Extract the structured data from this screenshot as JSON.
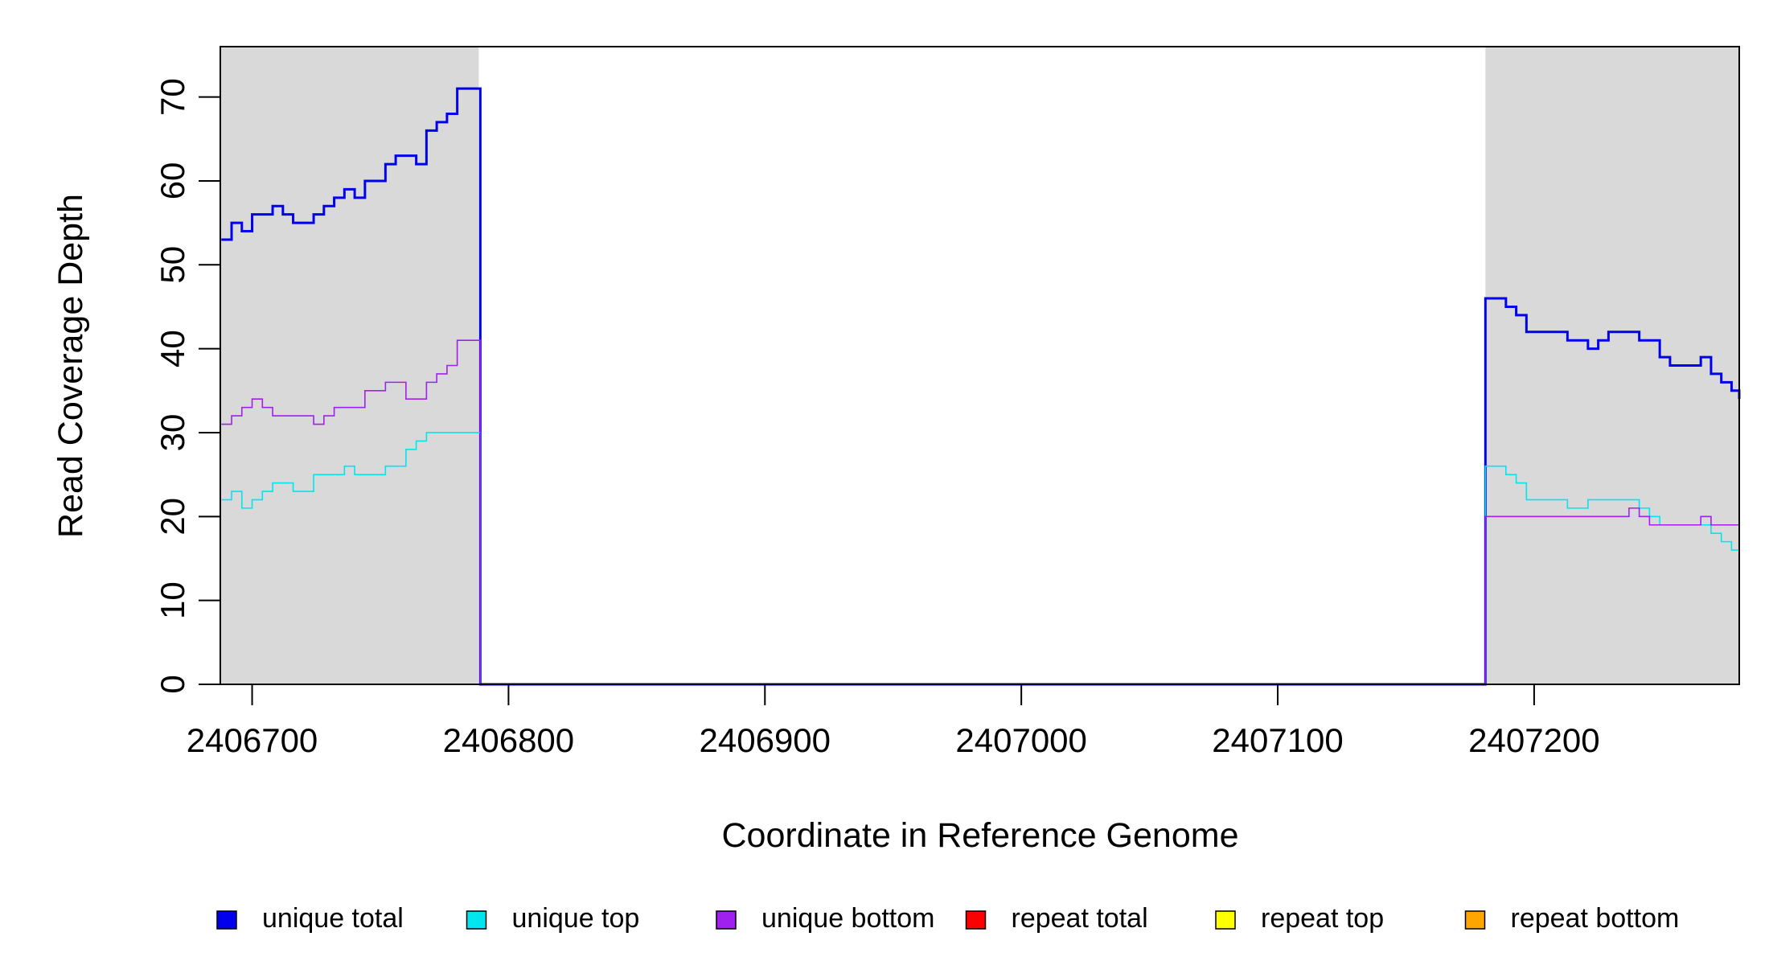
{
  "chart_data": {
    "type": "step",
    "x_label": "Coordinate in Reference Genome",
    "y_label": "Read Coverage Depth",
    "xlim": [
      2406687.6,
      2407280
    ],
    "ylim": [
      0,
      76
    ],
    "xticks": [
      2406700,
      2406800,
      2406900,
      2407000,
      2407100,
      2407200
    ],
    "yticks": [
      0,
      10,
      20,
      30,
      40,
      50,
      60,
      70
    ],
    "shaded_regions": [
      [
        2406687.6,
        2406788.4
      ],
      [
        2407181,
        2407280
      ]
    ],
    "shade_color": "#d9d9d9",
    "x": [
      2406688,
      2406692,
      2406696,
      2406700,
      2406704,
      2406708,
      2406712,
      2406716,
      2406720,
      2406724,
      2406728,
      2406732,
      2406736,
      2406740,
      2406744,
      2406748,
      2406752,
      2406756,
      2406760,
      2406764,
      2406768,
      2406772,
      2406776,
      2406780,
      2406784,
      2406788,
      2406789,
      2407181,
      2407185,
      2407189,
      2407193,
      2407197,
      2407201,
      2407205,
      2407209,
      2407213,
      2407217,
      2407221,
      2407225,
      2407229,
      2407233,
      2407237,
      2407241,
      2407245,
      2407249,
      2407253,
      2407257,
      2407261,
      2407265,
      2407269,
      2407273,
      2407277,
      2407280
    ],
    "series": [
      {
        "name": "unique total",
        "color": "#0000ee",
        "width": 3,
        "values": [
          53,
          55,
          54,
          56,
          56,
          57,
          56,
          55,
          55,
          56,
          57,
          58,
          59,
          58,
          60,
          60,
          62,
          63,
          63,
          62,
          66,
          67,
          68,
          71,
          71,
          71,
          0,
          46,
          46,
          45,
          44,
          42,
          42,
          42,
          42,
          41,
          41,
          40,
          41,
          42,
          42,
          42,
          41,
          41,
          39,
          38,
          38,
          38,
          39,
          37,
          36,
          35,
          34
        ]
      },
      {
        "name": "unique top",
        "color": "#00e5ee",
        "width": 1.6,
        "values": [
          22,
          23,
          21,
          22,
          23,
          24,
          24,
          23,
          23,
          25,
          25,
          25,
          26,
          25,
          25,
          25,
          26,
          26,
          28,
          29,
          30,
          30,
          30,
          30,
          30,
          30,
          0,
          26,
          26,
          25,
          24,
          22,
          22,
          22,
          22,
          21,
          21,
          22,
          22,
          22,
          22,
          22,
          21,
          20,
          19,
          19,
          19,
          19,
          19,
          18,
          17,
          16,
          14
        ]
      },
      {
        "name": "unique bottom",
        "color": "#a020f0",
        "width": 1.6,
        "values": [
          31,
          32,
          33,
          34,
          33,
          32,
          32,
          32,
          32,
          31,
          32,
          33,
          33,
          33,
          35,
          35,
          36,
          36,
          34,
          34,
          36,
          37,
          38,
          41,
          41,
          41,
          0,
          20,
          20,
          20,
          20,
          20,
          20,
          20,
          20,
          20,
          20,
          20,
          20,
          20,
          20,
          21,
          20,
          19,
          19,
          19,
          19,
          19,
          20,
          19,
          19,
          19,
          20
        ]
      },
      {
        "name": "repeat total",
        "color": "#ff0000",
        "width": 1.6,
        "values": [
          0,
          0,
          0,
          0,
          0,
          0,
          0,
          0,
          0,
          0,
          0,
          0,
          0,
          0,
          0,
          0,
          0,
          0,
          0,
          0,
          0,
          0,
          0,
          0,
          0,
          0,
          0,
          0,
          0,
          0,
          0,
          0,
          0,
          0,
          0,
          0,
          0,
          0,
          0,
          0,
          0,
          0,
          0,
          0,
          0,
          0,
          0,
          0,
          0,
          0,
          0,
          0,
          0
        ]
      },
      {
        "name": "repeat top",
        "color": "#ffff00",
        "width": 1.6,
        "values": [
          0,
          0,
          0,
          0,
          0,
          0,
          0,
          0,
          0,
          0,
          0,
          0,
          0,
          0,
          0,
          0,
          0,
          0,
          0,
          0,
          0,
          0,
          0,
          0,
          0,
          0,
          0,
          0,
          0,
          0,
          0,
          0,
          0,
          0,
          0,
          0,
          0,
          0,
          0,
          0,
          0,
          0,
          0,
          0,
          0,
          0,
          0,
          0,
          0,
          0,
          0,
          0,
          0
        ]
      },
      {
        "name": "repeat bottom",
        "color": "#ffa500",
        "width": 1.6,
        "values": [
          0,
          0,
          0,
          0,
          0,
          0,
          0,
          0,
          0,
          0,
          0,
          0,
          0,
          0,
          0,
          0,
          0,
          0,
          0,
          0,
          0,
          0,
          0,
          0,
          0,
          0,
          0,
          0,
          0,
          0,
          0,
          0,
          0,
          0,
          0,
          0,
          0,
          0,
          0,
          0,
          0,
          0,
          0,
          0,
          0,
          0,
          0,
          0,
          0,
          0,
          0,
          0,
          0
        ]
      }
    ]
  }
}
